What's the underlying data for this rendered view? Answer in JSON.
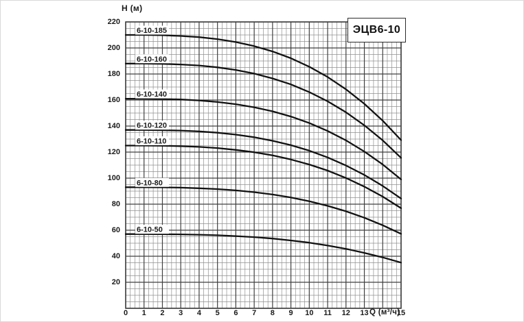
{
  "window": {
    "background": "#ffffff",
    "frame_border_color": "#d9d9d9"
  },
  "chart_data": {
    "type": "line",
    "title": "ЭЦВ6-10",
    "xlabel": "Q (м³/ч)",
    "ylabel": "H (м)",
    "xlim": [
      0,
      15
    ],
    "ylim": [
      0,
      220
    ],
    "x_major_step": 1,
    "x_minor_step": 0.25,
    "y_major_step": 20,
    "y_minor_step": 5,
    "grid": true,
    "x_tick_values": [
      0,
      1,
      2,
      3,
      4,
      5,
      6,
      7,
      8,
      9,
      10,
      11,
      12,
      13,
      15
    ],
    "x_tick_replaced_by_axis_label": 14,
    "y_tick_values": [
      20,
      40,
      60,
      80,
      100,
      120,
      140,
      160,
      180,
      200,
      220
    ],
    "legend_position": "labels-on-curves",
    "colors": {
      "curve": "#111111",
      "grid_minor": "#8f8f8f",
      "grid_major": "#3f3f3f",
      "text": "#1a1a1a",
      "label_background": "#ffffff"
    },
    "x": [
      0,
      1,
      2,
      3,
      4,
      5,
      6,
      7,
      8,
      9,
      10,
      11,
      12,
      13,
      14,
      15
    ],
    "series": [
      {
        "name": "6-10-185",
        "values": [
          210,
          210,
          209.8,
          209.2,
          208.3,
          206.8,
          204.5,
          201.4,
          197.3,
          192.1,
          185.6,
          177.7,
          168.2,
          157.1,
          144.1,
          129.2
        ]
      },
      {
        "name": "6-10-160",
        "values": [
          188,
          188,
          187.8,
          187.3,
          186.5,
          185.1,
          183.1,
          180.3,
          176.6,
          172,
          166.1,
          159,
          150.6,
          140.6,
          129,
          115.6
        ]
      },
      {
        "name": "6-10-140",
        "values": [
          161,
          161,
          160.8,
          160.4,
          159.7,
          158.5,
          156.8,
          154.4,
          151.3,
          147.3,
          142.3,
          136.2,
          129,
          120.4,
          110.5,
          99
        ]
      },
      {
        "name": "6-10-120",
        "values": [
          137,
          137,
          136.8,
          136.5,
          135.9,
          134.9,
          133.4,
          131.4,
          128.7,
          125.3,
          121.1,
          115.9,
          109.7,
          102.5,
          94,
          84.3
        ]
      },
      {
        "name": "6-10-110",
        "values": [
          125,
          125,
          124.9,
          124.6,
          124,
          123.1,
          121.7,
          119.9,
          117.5,
          114.3,
          110.5,
          105.8,
          100.1,
          93.5,
          85.8,
          76.9
        ]
      },
      {
        "name": "6-10-80",
        "values": [
          93,
          93,
          92.9,
          92.7,
          92.2,
          91.6,
          90.6,
          89.2,
          87.4,
          85.1,
          82.2,
          78.7,
          74.5,
          69.6,
          63.8,
          57.2
        ]
      },
      {
        "name": "6-10-50",
        "values": [
          57,
          57,
          56.9,
          56.8,
          56.5,
          56.1,
          55.5,
          54.7,
          53.6,
          52.1,
          50.4,
          48.2,
          45.7,
          42.6,
          39.1,
          35.1
        ]
      }
    ]
  }
}
